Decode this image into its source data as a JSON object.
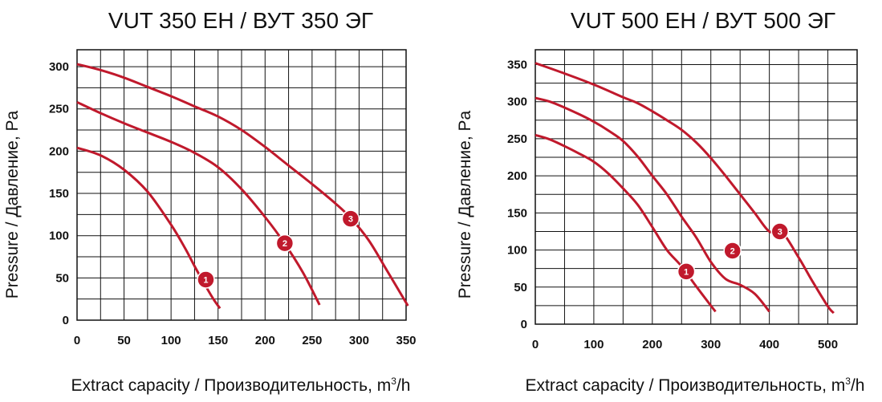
{
  "chart_data": [
    {
      "type": "line",
      "title": "VUT 350 EH / ВУТ 350 ЭГ",
      "xlabel": "Extract capacity / Производительность, m³/h",
      "ylabel": "Pressure / Давление, Pa",
      "xlim": [
        0,
        350
      ],
      "ylim": [
        0,
        320
      ],
      "xticks": [
        0,
        50,
        100,
        150,
        200,
        250,
        300,
        350
      ],
      "yticks": [
        0,
        50,
        100,
        150,
        200,
        250,
        300
      ],
      "grid": true,
      "series": [
        {
          "name": "1",
          "x": [
            0,
            25,
            50,
            75,
            100,
            115,
            125,
            135,
            145,
            152
          ],
          "y": [
            204,
            195,
            178,
            152,
            113,
            85,
            64,
            44,
            25,
            14
          ]
        },
        {
          "name": "2",
          "x": [
            0,
            25,
            50,
            75,
            100,
            125,
            150,
            175,
            200,
            220,
            240,
            258
          ],
          "y": [
            258,
            245,
            233,
            222,
            211,
            198,
            181,
            155,
            122,
            92,
            57,
            18
          ]
        },
        {
          "name": "3",
          "x": [
            0,
            25,
            50,
            75,
            100,
            125,
            150,
            175,
            200,
            225,
            250,
            275,
            291,
            310,
            330,
            352
          ],
          "y": [
            303,
            296,
            287,
            276,
            265,
            253,
            241,
            225,
            205,
            183,
            161,
            138,
            121,
            95,
            58,
            17
          ]
        }
      ],
      "markers": [
        {
          "label": "1",
          "x": 137,
          "y": 48
        },
        {
          "label": "2",
          "x": 221,
          "y": 91
        },
        {
          "label": "3",
          "x": 291,
          "y": 120
        }
      ]
    },
    {
      "type": "line",
      "title": "VUT 500 EH / ВУТ 500 ЭГ",
      "xlabel": "Extract capacity / Производительность, m³/h",
      "ylabel": "Pressure / Давление, Pa",
      "xlim": [
        0,
        550
      ],
      "ylim": [
        0,
        370
      ],
      "xticks": [
        0,
        100,
        200,
        300,
        400,
        500
      ],
      "yticks": [
        0,
        50,
        100,
        150,
        200,
        250,
        300,
        350
      ],
      "grid": true,
      "series": [
        {
          "name": "1",
          "x": [
            0,
            25,
            50,
            75,
            100,
            125,
            150,
            175,
            200,
            225,
            250,
            275,
            300,
            308
          ],
          "y": [
            255,
            249,
            240,
            230,
            219,
            203,
            183,
            161,
            131,
            100,
            78,
            51,
            25,
            17
          ]
        },
        {
          "name": "2",
          "x": [
            0,
            25,
            50,
            75,
            100,
            125,
            150,
            175,
            200,
            225,
            250,
            275,
            300,
            325,
            350,
            375,
            400
          ],
          "y": [
            305,
            300,
            292,
            283,
            273,
            261,
            247,
            226,
            200,
            175,
            145,
            117,
            84,
            61,
            53,
            41,
            17
          ]
        },
        {
          "name": "3",
          "x": [
            0,
            50,
            100,
            150,
            175,
            200,
            225,
            250,
            275,
            300,
            325,
            350,
            375,
            400,
            420,
            450,
            475,
            500,
            510
          ],
          "y": [
            352,
            338,
            323,
            306,
            298,
            287,
            275,
            262,
            245,
            224,
            200,
            175,
            150,
            125,
            126,
            90,
            56,
            24,
            15
          ]
        }
      ],
      "markers": [
        {
          "label": "1",
          "x": 258,
          "y": 71
        },
        {
          "label": "2",
          "x": 337,
          "y": 99
        },
        {
          "label": "3",
          "x": 418,
          "y": 125
        }
      ]
    }
  ]
}
